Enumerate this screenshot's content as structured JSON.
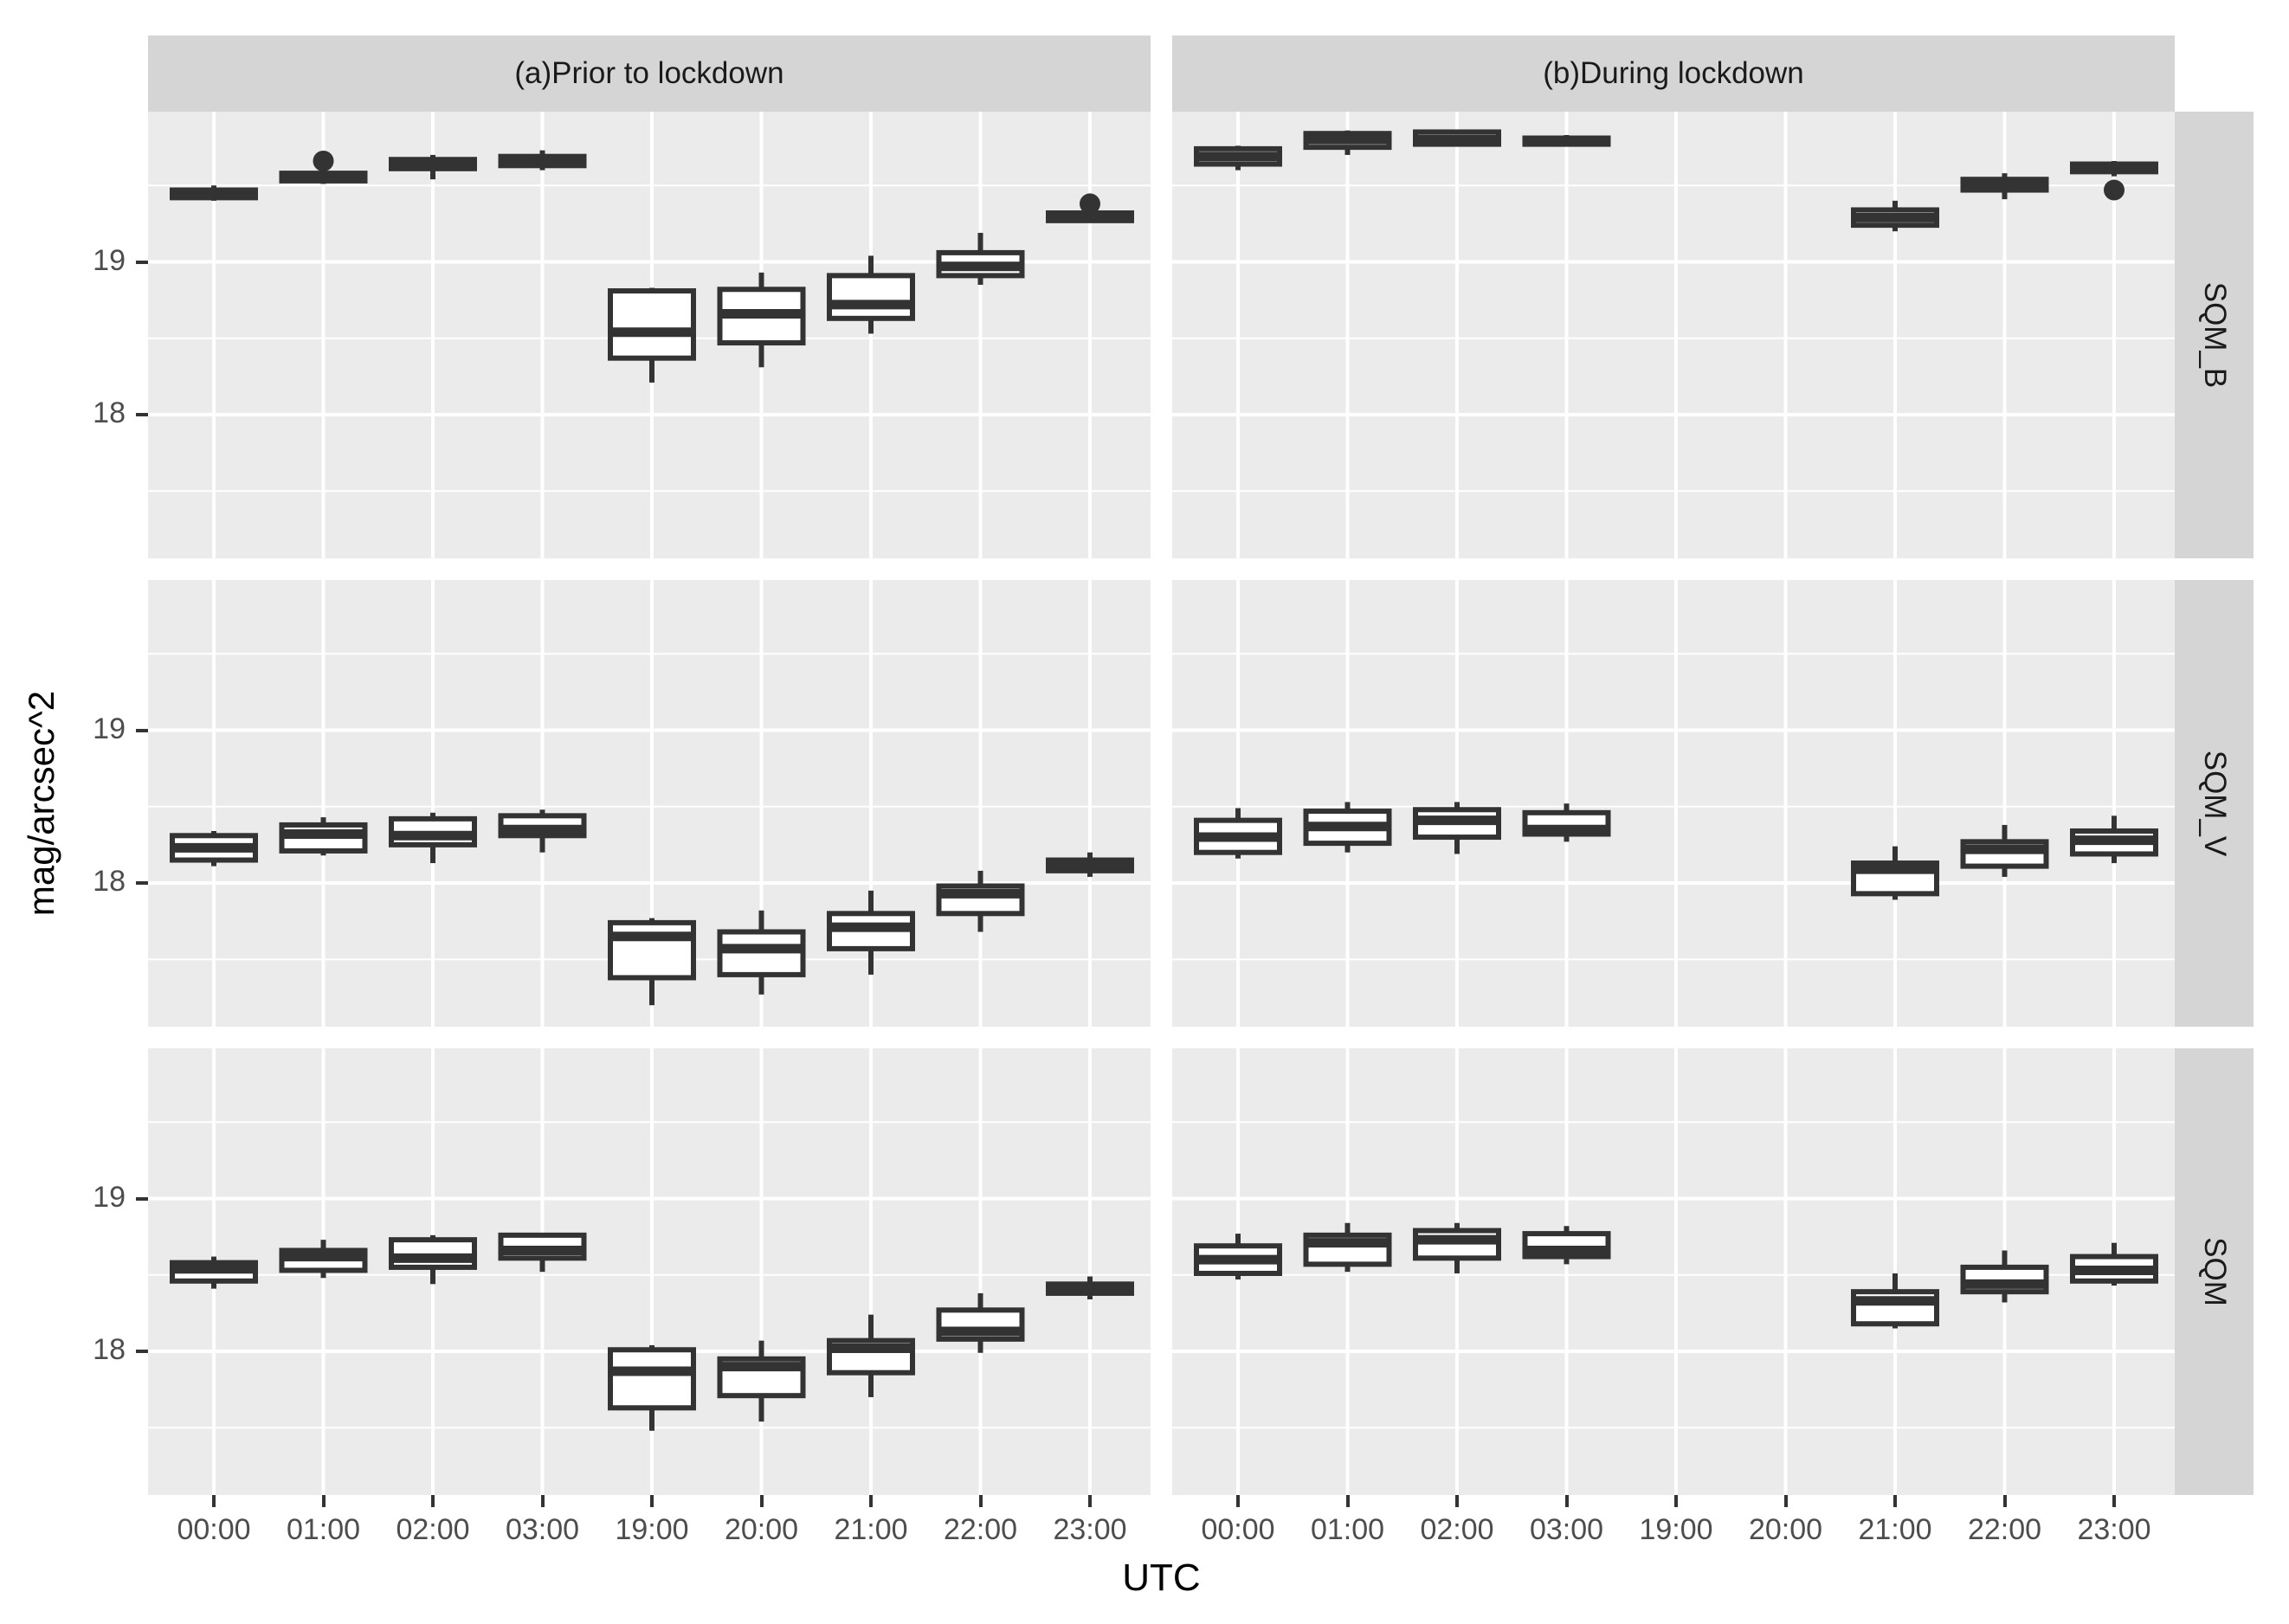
{
  "axes": {
    "y_title": "mag/arcsec^2",
    "x_title": "UTC",
    "y_tick_labels": [
      "19",
      "18"
    ]
  },
  "facets": {
    "col_titles": [
      "(a)Prior to lockdown",
      "(b)During lockdown"
    ],
    "row_titles": [
      "SQM_B",
      "SQM_V",
      "SQM"
    ]
  },
  "colors": {
    "panel_bg": "#ebebeb",
    "strip_bg": "#d5d5d5",
    "grid": "#ffffff",
    "box_stroke": "#333333",
    "box_fill": "#ffffff",
    "axis_text": "#4d4d4d"
  },
  "chart_data": {
    "type": "boxplot",
    "title": "",
    "xlabel": "UTC",
    "ylabel": "mag/arcsec^2",
    "x_categories": [
      "00:00",
      "01:00",
      "02:00",
      "03:00",
      "19:00",
      "20:00",
      "21:00",
      "22:00",
      "23:00"
    ],
    "y_ticks": [
      18,
      19
    ],
    "y_minor_ticks": [
      17.5,
      18.5,
      19.5
    ],
    "ylim": [
      17.05,
      19.99
    ],
    "facet_columns": [
      "(a)Prior to lockdown",
      "(b)During lockdown"
    ],
    "facet_rows": [
      "SQM_B",
      "SQM_V",
      "SQM"
    ],
    "note": "each box = [time, whisker_low, q1, median, q3, whisker_high, outliers]",
    "series": {
      "SQM_B": {
        "prior": [
          [
            "00:00",
            19.4,
            19.42,
            19.45,
            19.47,
            19.5,
            []
          ],
          [
            "01:00",
            19.51,
            19.53,
            19.56,
            19.58,
            19.6,
            [
              19.66
            ]
          ],
          [
            "02:00",
            19.54,
            19.61,
            19.64,
            19.67,
            19.7,
            []
          ],
          [
            "03:00",
            19.6,
            19.63,
            19.66,
            19.69,
            19.73,
            []
          ],
          [
            "19:00",
            18.21,
            18.37,
            18.54,
            18.81,
            18.83,
            []
          ],
          [
            "20:00",
            18.31,
            18.47,
            18.66,
            18.82,
            18.93,
            []
          ],
          [
            "21:00",
            18.53,
            18.63,
            18.72,
            18.91,
            19.04,
            []
          ],
          [
            "22:00",
            18.85,
            18.91,
            18.97,
            19.06,
            19.19,
            []
          ],
          [
            "23:00",
            19.26,
            19.27,
            19.29,
            19.32,
            19.33,
            [
              19.38
            ]
          ]
        ],
        "during": [
          [
            "00:00",
            19.6,
            19.64,
            19.69,
            19.74,
            19.76,
            []
          ],
          [
            "01:00",
            19.7,
            19.75,
            19.8,
            19.84,
            19.86,
            []
          ],
          [
            "02:00",
            19.76,
            19.77,
            19.8,
            19.85,
            19.86,
            []
          ],
          [
            "03:00",
            19.76,
            19.77,
            19.79,
            19.81,
            19.83,
            []
          ],
          [
            "21:00",
            19.2,
            19.24,
            19.29,
            19.34,
            19.4,
            []
          ],
          [
            "22:00",
            19.41,
            19.47,
            19.51,
            19.54,
            19.58,
            []
          ],
          [
            "23:00",
            19.56,
            19.59,
            19.62,
            19.64,
            19.66,
            [
              19.47
            ]
          ]
        ]
      },
      "SQM_V": {
        "prior": [
          [
            "00:00",
            18.11,
            18.15,
            18.23,
            18.31,
            18.34,
            []
          ],
          [
            "01:00",
            18.18,
            18.21,
            18.32,
            18.38,
            18.43,
            []
          ],
          [
            "02:00",
            18.13,
            18.25,
            18.31,
            18.42,
            18.46,
            []
          ],
          [
            "03:00",
            18.2,
            18.31,
            18.35,
            18.44,
            18.48,
            []
          ],
          [
            "19:00",
            17.2,
            17.38,
            17.65,
            17.74,
            17.77,
            []
          ],
          [
            "20:00",
            17.27,
            17.4,
            17.57,
            17.68,
            17.82,
            []
          ],
          [
            "21:00",
            17.4,
            17.57,
            17.71,
            17.8,
            17.95,
            []
          ],
          [
            "22:00",
            17.68,
            17.8,
            17.93,
            17.98,
            18.08,
            []
          ],
          [
            "23:00",
            18.04,
            18.08,
            18.12,
            18.15,
            18.2,
            []
          ]
        ],
        "during": [
          [
            "00:00",
            18.16,
            18.2,
            18.3,
            18.41,
            18.49,
            []
          ],
          [
            "01:00",
            18.2,
            18.26,
            18.37,
            18.47,
            18.53,
            []
          ],
          [
            "02:00",
            18.19,
            18.3,
            18.41,
            18.48,
            18.53,
            []
          ],
          [
            "03:00",
            18.27,
            18.32,
            18.35,
            18.46,
            18.52,
            []
          ],
          [
            "21:00",
            17.89,
            17.93,
            18.09,
            18.13,
            18.24,
            []
          ],
          [
            "22:00",
            18.04,
            18.11,
            18.22,
            18.27,
            18.38,
            []
          ],
          [
            "23:00",
            18.13,
            18.19,
            18.28,
            18.34,
            18.44,
            []
          ]
        ]
      },
      "SQM": {
        "prior": [
          [
            "00:00",
            18.41,
            18.46,
            18.54,
            18.58,
            18.62,
            []
          ],
          [
            "01:00",
            18.48,
            18.53,
            18.62,
            18.66,
            18.73,
            []
          ],
          [
            "02:00",
            18.44,
            18.55,
            18.61,
            18.73,
            18.76,
            []
          ],
          [
            "03:00",
            18.52,
            18.61,
            18.66,
            18.76,
            18.77,
            []
          ],
          [
            "19:00",
            17.48,
            17.63,
            17.87,
            18.01,
            18.04,
            []
          ],
          [
            "20:00",
            17.54,
            17.71,
            17.9,
            17.95,
            18.07,
            []
          ],
          [
            "21:00",
            17.7,
            17.86,
            18.02,
            18.07,
            18.24,
            []
          ],
          [
            "22:00",
            17.99,
            18.08,
            18.13,
            18.27,
            18.38,
            []
          ],
          [
            "23:00",
            18.34,
            18.38,
            18.41,
            18.44,
            18.49,
            []
          ]
        ],
        "during": [
          [
            "00:00",
            18.47,
            18.51,
            18.6,
            18.69,
            18.77,
            []
          ],
          [
            "01:00",
            18.52,
            18.57,
            18.71,
            18.76,
            18.84,
            []
          ],
          [
            "02:00",
            18.51,
            18.61,
            18.73,
            18.79,
            18.84,
            []
          ],
          [
            "03:00",
            18.57,
            18.62,
            18.66,
            18.77,
            18.82,
            []
          ],
          [
            "21:00",
            18.15,
            18.18,
            18.33,
            18.39,
            18.51,
            []
          ],
          [
            "22:00",
            18.32,
            18.39,
            18.44,
            18.55,
            18.66,
            []
          ],
          [
            "23:00",
            18.43,
            18.46,
            18.53,
            18.62,
            18.71,
            []
          ]
        ]
      }
    }
  }
}
